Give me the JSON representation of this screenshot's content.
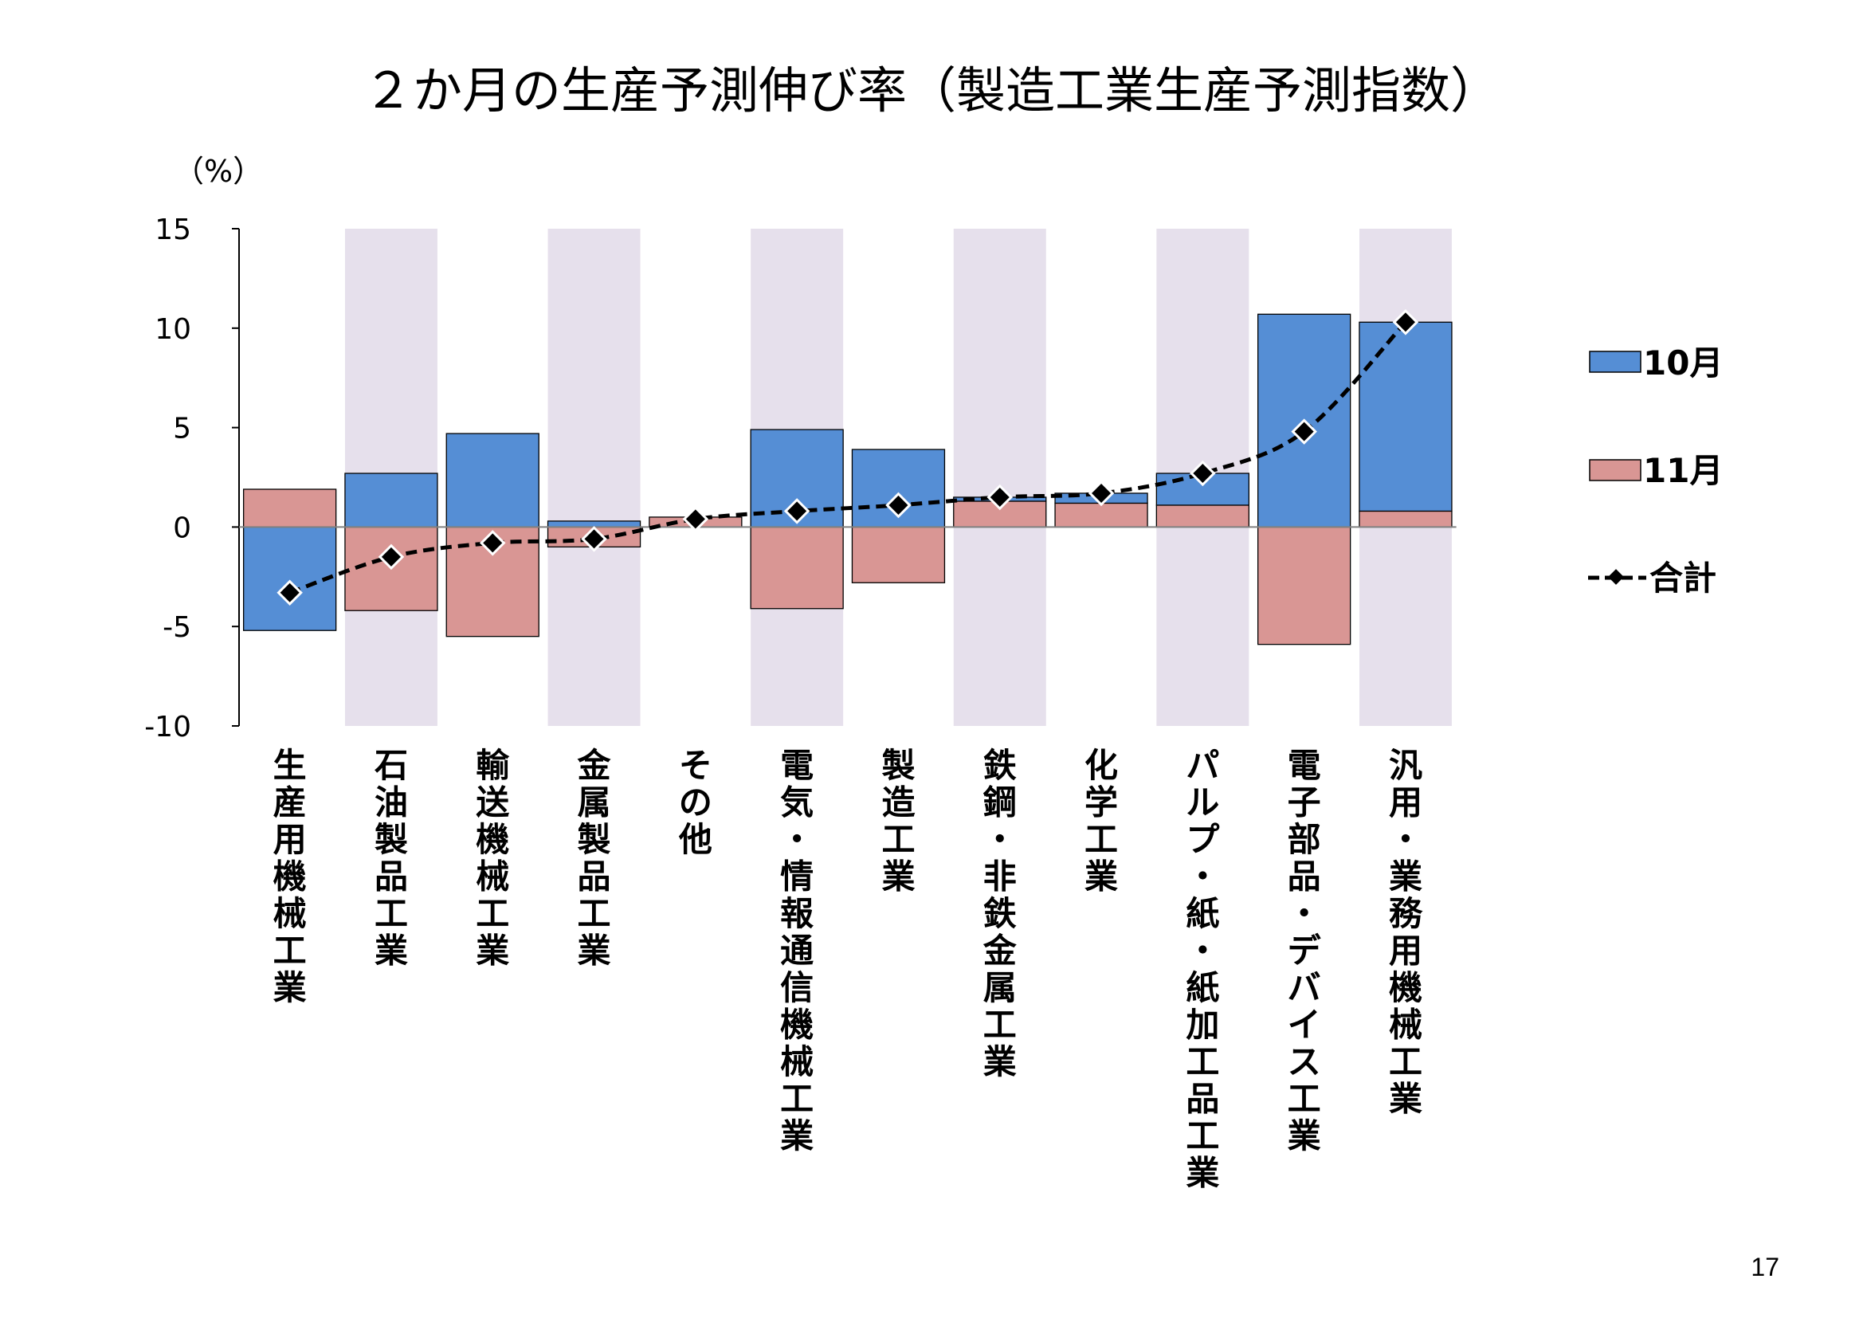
{
  "page_number": "17",
  "colors": {
    "m10": "#558ed5",
    "m11": "#d99694",
    "band": "#e6e0ec",
    "line": "#000000"
  },
  "chart_data": {
    "type": "bar",
    "title": "２か月の生産予測伸び率（製造工業生産予測指数）",
    "unit_label": "（%）",
    "ylim": [
      -10,
      15
    ],
    "yticks": [
      15,
      10,
      5,
      0,
      -5,
      -10
    ],
    "ytick_labels": [
      "15",
      "10",
      "5",
      "0",
      "-5",
      "-10"
    ],
    "stacked": true,
    "legend_position": "right",
    "categories": [
      "生産用機械工業",
      "石油製品工業",
      "輸送機械工業",
      "金属製品工業",
      "その他",
      "電気・情報通信機械工業",
      "製造工業",
      "鉄鋼・非鉄金属工業",
      "化学工業",
      "パルプ・紙・紙加工品工業",
      "電子部品・デバイス工業",
      "汎用・業務用機械工業"
    ],
    "shaded_categories": [
      1,
      3,
      5,
      7,
      9,
      11
    ],
    "series": [
      {
        "name": "10月",
        "type": "bar",
        "values": [
          -5.2,
          2.7,
          4.7,
          0.3,
          0.0,
          4.9,
          3.9,
          0.2,
          0.5,
          1.6,
          10.7,
          9.5
        ]
      },
      {
        "name": "11月",
        "type": "bar",
        "values": [
          1.9,
          -4.2,
          -5.5,
          -1.0,
          0.5,
          -4.1,
          -2.8,
          1.3,
          1.2,
          1.1,
          -5.9,
          0.8
        ]
      },
      {
        "name": "合計",
        "type": "line",
        "values": [
          -3.3,
          -1.5,
          -0.8,
          -0.6,
          0.4,
          0.8,
          1.1,
          1.5,
          1.7,
          2.7,
          4.8,
          10.3
        ]
      }
    ]
  }
}
